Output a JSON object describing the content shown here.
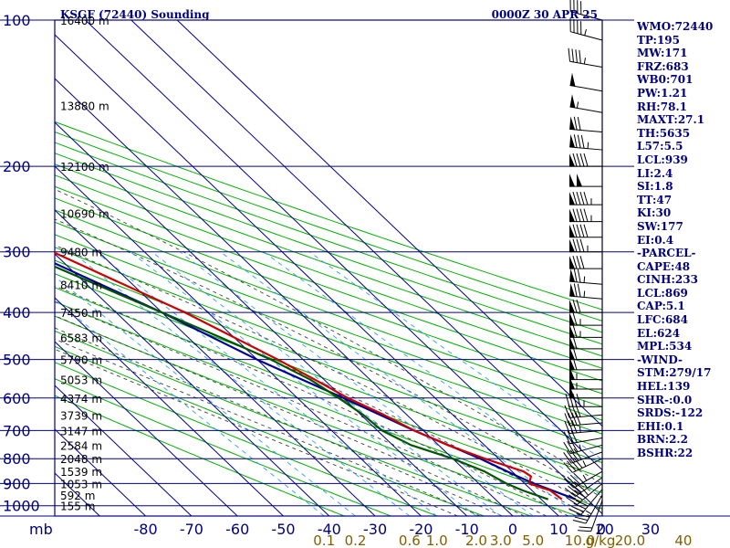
{
  "chart_data": {
    "type": "skew-t",
    "station_title": "KSGF (72440) Sounding",
    "time_label": "0000Z 30 APR 25",
    "pressure_levels": [
      100,
      200,
      300,
      400,
      500,
      600,
      700,
      800,
      900,
      1000
    ],
    "pressure_axis_unit": "mb",
    "height_labels": [
      {
        "p": 100,
        "label": "16400 m"
      },
      {
        "p": 150,
        "label": "13880 m"
      },
      {
        "p": 200,
        "label": "12100 m"
      },
      {
        "p": 250,
        "label": "10690 m"
      },
      {
        "p": 300,
        "label": "9480 m"
      },
      {
        "p": 350,
        "label": "8410 m"
      },
      {
        "p": 400,
        "label": "7450 m"
      },
      {
        "p": 450,
        "label": "6583 m"
      },
      {
        "p": 500,
        "label": "5790 m"
      },
      {
        "p": 550,
        "label": "5053 m"
      },
      {
        "p": 600,
        "label": "4374 m"
      },
      {
        "p": 650,
        "label": "3739 m"
      },
      {
        "p": 700,
        "label": "3147 m"
      },
      {
        "p": 750,
        "label": "2584 m"
      },
      {
        "p": 800,
        "label": "2048 m"
      },
      {
        "p": 850,
        "label": "1539 m"
      },
      {
        "p": 900,
        "label": "1053 m"
      },
      {
        "p": 950,
        "label": "592 m"
      },
      {
        "p": 1000,
        "label": "155 m"
      }
    ],
    "temperature_ticks": [
      "-80",
      "-70",
      "-60",
      "-50",
      "-40",
      "-30",
      "-20",
      "-10",
      "0",
      "10",
      "20",
      "30"
    ],
    "temperature_tick_values": [
      -80,
      -70,
      -60,
      -50,
      -40,
      -30,
      -20,
      -10,
      0,
      10,
      20,
      30
    ],
    "mixing_ratio_labels": [
      "0.1",
      "0.2",
      "0.6",
      "1.0",
      "2.0",
      "3.0",
      "5.0",
      "10.0",
      "20.0",
      "40"
    ],
    "mixing_ratio_values": [
      0.1,
      0.2,
      0.6,
      1.0,
      2.0,
      3.0,
      5.0,
      10.0,
      20.0,
      40
    ],
    "mixing_ratio_unit": "g/kg",
    "wind_axis_labels": [
      "0"
    ],
    "isotherm_range": [
      -120,
      40
    ],
    "dry_adiabat_thetas": [
      -40,
      -30,
      -20,
      -10,
      0,
      10,
      20,
      30,
      40,
      50,
      60,
      70,
      80,
      90,
      100,
      110,
      120,
      130,
      140,
      150,
      160,
      170
    ],
    "moist_adiabat_thetaw": [
      -15,
      -10,
      -5,
      0,
      5,
      10,
      15,
      20,
      25,
      30
    ],
    "temperature_profile": [
      {
        "p": 970,
        "t": 14.5
      },
      {
        "p": 930,
        "t": 14
      },
      {
        "p": 900,
        "t": 11
      },
      {
        "p": 870,
        "t": 13
      },
      {
        "p": 850,
        "t": 12.5
      },
      {
        "p": 800,
        "t": 7
      },
      {
        "p": 750,
        "t": 2
      },
      {
        "p": 700,
        "t": -2
      },
      {
        "p": 650,
        "t": -5
      },
      {
        "p": 600,
        "t": -9
      },
      {
        "p": 550,
        "t": -12
      },
      {
        "p": 500,
        "t": -15.5
      },
      {
        "p": 450,
        "t": -20
      },
      {
        "p": 400,
        "t": -25
      },
      {
        "p": 350,
        "t": -32
      },
      {
        "p": 300,
        "t": -40
      },
      {
        "p": 250,
        "t": -46
      },
      {
        "p": 220,
        "t": -54
      },
      {
        "p": 200,
        "t": -60
      },
      {
        "p": 185,
        "t": -62
      },
      {
        "p": 170,
        "t": -60
      },
      {
        "p": 150,
        "t": -56
      },
      {
        "p": 130,
        "t": -61
      },
      {
        "p": 100,
        "t": -63
      }
    ],
    "dewpoint_profile": [
      {
        "p": 970,
        "t": 11.5
      },
      {
        "p": 930,
        "t": 8
      },
      {
        "p": 900,
        "t": 6
      },
      {
        "p": 850,
        "t": 4
      },
      {
        "p": 800,
        "t": 0
      },
      {
        "p": 750,
        "t": -6
      },
      {
        "p": 700,
        "t": -9
      },
      {
        "p": 650,
        "t": -9.5
      },
      {
        "p": 600,
        "t": -11
      },
      {
        "p": 550,
        "t": -13
      },
      {
        "p": 500,
        "t": -17
      },
      {
        "p": 450,
        "t": -23
      },
      {
        "p": 400,
        "t": -30
      },
      {
        "p": 350,
        "t": -38
      },
      {
        "p": 300,
        "t": -47
      },
      {
        "p": 250,
        "t": -55
      },
      {
        "p": 200,
        "t": -64
      },
      {
        "p": 185,
        "t": -66
      },
      {
        "p": 170,
        "t": -66
      },
      {
        "p": 150,
        "t": -63
      },
      {
        "p": 125,
        "t": -68
      },
      {
        "p": 100,
        "t": -73
      }
    ],
    "parcel_profile": [
      {
        "p": 970,
        "t": 17.5
      },
      {
        "p": 900,
        "t": 12
      },
      {
        "p": 869,
        "t": 10
      },
      {
        "p": 800,
        "t": 6
      },
      {
        "p": 700,
        "t": -2
      },
      {
        "p": 600,
        "t": -10
      },
      {
        "p": 500,
        "t": -20
      },
      {
        "p": 400,
        "t": -30
      },
      {
        "p": 300,
        "t": -45
      },
      {
        "p": 200,
        "t": -68
      },
      {
        "p": 150,
        "t": -82
      }
    ],
    "wind_barbs": [
      {
        "p": 975,
        "dir": 200,
        "spd": 20
      },
      {
        "p": 950,
        "dir": 210,
        "spd": 35
      },
      {
        "p": 925,
        "dir": 220,
        "spd": 40
      },
      {
        "p": 900,
        "dir": 230,
        "spd": 45
      },
      {
        "p": 875,
        "dir": 235,
        "spd": 45
      },
      {
        "p": 850,
        "dir": 240,
        "spd": 45
      },
      {
        "p": 800,
        "dir": 245,
        "spd": 45
      },
      {
        "p": 775,
        "dir": 250,
        "spd": 40
      },
      {
        "p": 750,
        "dir": 255,
        "spd": 35
      },
      {
        "p": 725,
        "dir": 260,
        "spd": 30
      },
      {
        "p": 700,
        "dir": 265,
        "spd": 35
      },
      {
        "p": 675,
        "dir": 265,
        "spd": 40
      },
      {
        "p": 650,
        "dir": 265,
        "spd": 40
      },
      {
        "p": 625,
        "dir": 270,
        "spd": 45
      },
      {
        "p": 600,
        "dir": 270,
        "spd": 50
      },
      {
        "p": 575,
        "dir": 270,
        "spd": 55
      },
      {
        "p": 550,
        "dir": 270,
        "spd": 55
      },
      {
        "p": 525,
        "dir": 270,
        "spd": 60
      },
      {
        "p": 500,
        "dir": 270,
        "spd": 60
      },
      {
        "p": 475,
        "dir": 270,
        "spd": 60
      },
      {
        "p": 450,
        "dir": 270,
        "spd": 65
      },
      {
        "p": 425,
        "dir": 270,
        "spd": 65
      },
      {
        "p": 400,
        "dir": 270,
        "spd": 70
      },
      {
        "p": 375,
        "dir": 275,
        "spd": 75
      },
      {
        "p": 350,
        "dir": 275,
        "spd": 75
      },
      {
        "p": 325,
        "dir": 270,
        "spd": 80
      },
      {
        "p": 300,
        "dir": 270,
        "spd": 85
      },
      {
        "p": 280,
        "dir": 270,
        "spd": 90
      },
      {
        "p": 260,
        "dir": 270,
        "spd": 95
      },
      {
        "p": 240,
        "dir": 270,
        "spd": 95
      },
      {
        "p": 220,
        "dir": 270,
        "spd": 100
      },
      {
        "p": 200,
        "dir": 270,
        "spd": 90
      },
      {
        "p": 185,
        "dir": 275,
        "spd": 85
      },
      {
        "p": 170,
        "dir": 275,
        "spd": 70
      },
      {
        "p": 155,
        "dir": 280,
        "spd": 55
      },
      {
        "p": 140,
        "dir": 280,
        "spd": 50
      },
      {
        "p": 125,
        "dir": 280,
        "spd": 45
      },
      {
        "p": 110,
        "dir": 285,
        "spd": 45
      },
      {
        "p": 100,
        "dir": 285,
        "spd": 40
      }
    ],
    "colors": {
      "grid": "#00008b",
      "dry_adiabats": "#00b000",
      "moist_adiabats": "#404040",
      "mixing_ratio": "#3399ff",
      "temperature": "#cc0000",
      "dewpoint": "#005500",
      "parcel": "#000099",
      "axis_text": "#000080",
      "mixing_text": "#806000",
      "wind_barbs": "#000000"
    }
  },
  "station_params": [
    "WMO:72440",
    "TP:195",
    "MW:171",
    "FRZ:683",
    "WB0:701",
    "PW:1.21",
    "RH:78.1",
    "MAXT:27.1",
    "TH:5635",
    "L57:5.5",
    "LCL:939",
    "LI:2.4",
    "SI:1.8",
    "TT:47",
    "KI:30",
    "SW:177",
    "EI:0.4",
    "-PARCEL-",
    "CAPE:48",
    "CINH:233",
    "LCL:869",
    "CAP:5.1",
    "LFC:684",
    "EL:624",
    "MPL:534",
    "-WIND-",
    "STM:279/17",
    "HEL:139",
    "SHR-:0.0",
    "SRDS:-122",
    "EHI:0.1",
    "BRN:2.2",
    "BSHR:22"
  ]
}
